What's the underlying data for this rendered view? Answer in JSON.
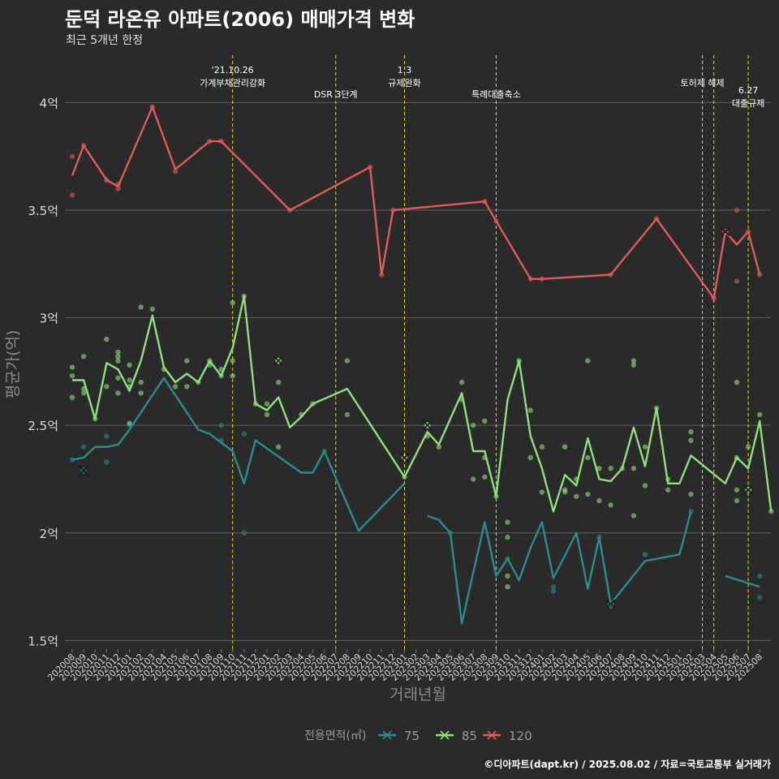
{
  "header": {
    "title": "둔덕 라온유 아파트(2006) 매매가격 변화",
    "subtitle": "최근 5개년 한정"
  },
  "caption": "©디아파트(dapt.kr) / 2025.08.02 / 자료=국토교통부 실거래가",
  "chart_data": {
    "type": "line",
    "xlabel": "거래년월",
    "ylabel": "평균가(억)",
    "x": [
      "202008",
      "202009",
      "202010",
      "202011",
      "202012",
      "202101",
      "202102",
      "202103",
      "202104",
      "202105",
      "202106",
      "202107",
      "202108",
      "202109",
      "202110",
      "202111",
      "202112",
      "202201",
      "202202",
      "202203",
      "202204",
      "202205",
      "202206",
      "202207",
      "202208",
      "202209",
      "202210",
      "202211",
      "202212",
      "202301",
      "202302",
      "202303",
      "202304",
      "202305",
      "202306",
      "202307",
      "202308",
      "202309",
      "202310",
      "202311",
      "202312",
      "202401",
      "202402",
      "202403",
      "202404",
      "202405",
      "202406",
      "202407",
      "202408",
      "202409",
      "202410",
      "202411",
      "202412",
      "202501",
      "202502",
      "202503",
      "202504",
      "202505",
      "202506",
      "202507",
      "202508"
    ],
    "y_ticks": [
      {
        "value": 1.5,
        "label": "1.5억"
      },
      {
        "value": 2.0,
        "label": "2억"
      },
      {
        "value": 2.5,
        "label": "2.5억"
      },
      {
        "value": 3.0,
        "label": "3억"
      },
      {
        "value": 3.5,
        "label": "3.5억"
      },
      {
        "value": 4.0,
        "label": "4억"
      }
    ],
    "ylim": [
      1.46,
      4.22
    ],
    "grid": true,
    "legend": {
      "title": "전용면적(㎡)",
      "position": "bottom"
    },
    "series": [
      {
        "name": "75",
        "color": "#2a8c8c",
        "segments": [
          [
            [
              0,
              2.34
            ],
            [
              1,
              2.35
            ],
            [
              2,
              2.4
            ],
            [
              3,
              2.4
            ],
            [
              4,
              2.41
            ],
            [
              5,
              2.48
            ],
            [
              8,
              2.72
            ],
            [
              11,
              2.48
            ],
            [
              12,
              2.46
            ],
            [
              14,
              2.38
            ],
            [
              15,
              2.23
            ],
            [
              16,
              2.43
            ],
            [
              20,
              2.28
            ],
            [
              21,
              2.28
            ],
            [
              22,
              2.38
            ],
            [
              25,
              2.01
            ],
            [
              29,
              2.23
            ]
          ],
          [
            [
              31,
              2.08
            ],
            [
              32,
              2.06
            ],
            [
              33,
              2.0
            ],
            [
              34,
              1.58
            ],
            [
              36,
              2.05
            ],
            [
              37,
              1.8
            ],
            [
              38,
              1.88
            ],
            [
              39,
              1.78
            ],
            [
              40,
              1.93
            ],
            [
              41,
              2.05
            ],
            [
              42,
              1.79
            ],
            [
              44,
              2.0
            ],
            [
              45,
              1.74
            ],
            [
              46,
              1.98
            ],
            [
              47,
              1.67
            ],
            [
              50,
              1.87
            ],
            [
              53,
              1.9
            ],
            [
              54,
              2.1
            ]
          ],
          [
            [
              57,
              1.8
            ],
            [
              60,
              1.75
            ]
          ]
        ],
        "points": [
          [
            0,
            2.34
          ],
          [
            1,
            2.4
          ],
          [
            3,
            2.45
          ],
          [
            3,
            2.33
          ],
          [
            5,
            2.5
          ],
          [
            13,
            2.5
          ],
          [
            13,
            2.43
          ],
          [
            15,
            2.46
          ],
          [
            15,
            2.0
          ],
          [
            22,
            2.38
          ],
          [
            33,
            2.0
          ],
          [
            38,
            1.88
          ],
          [
            42,
            1.75
          ],
          [
            42,
            1.73
          ],
          [
            46,
            1.98
          ],
          [
            47,
            1.66
          ],
          [
            50,
            1.9
          ],
          [
            54,
            2.1
          ],
          [
            60,
            1.8
          ],
          [
            60,
            1.7
          ]
        ],
        "cancelled": [
          [
            1,
            2.29
          ],
          [
            47,
            1.67
          ]
        ]
      },
      {
        "name": "85",
        "color": "#8ee07c",
        "segments": [
          [
            [
              0,
              2.71
            ],
            [
              1,
              2.71
            ],
            [
              2,
              2.53
            ],
            [
              3,
              2.79
            ],
            [
              4,
              2.76
            ],
            [
              5,
              2.66
            ],
            [
              6,
              2.8
            ],
            [
              7,
              3.01
            ],
            [
              8,
              2.77
            ],
            [
              9,
              2.7
            ],
            [
              10,
              2.74
            ],
            [
              11,
              2.7
            ],
            [
              12,
              2.8
            ],
            [
              13,
              2.73
            ],
            [
              14,
              2.86
            ],
            [
              15,
              3.1
            ],
            [
              16,
              2.6
            ],
            [
              17,
              2.57
            ],
            [
              18,
              2.63
            ],
            [
              19,
              2.49
            ],
            [
              20,
              2.54
            ],
            [
              21,
              2.6
            ],
            [
              24,
              2.67
            ],
            [
              29,
              2.26
            ],
            [
              31,
              2.47
            ],
            [
              32,
              2.41
            ],
            [
              34,
              2.65
            ],
            [
              35,
              2.38
            ],
            [
              36,
              2.38
            ],
            [
              37,
              2.17
            ],
            [
              38,
              2.62
            ],
            [
              39,
              2.8
            ],
            [
              40,
              2.45
            ],
            [
              41,
              2.3
            ],
            [
              42,
              2.1
            ],
            [
              43,
              2.27
            ],
            [
              44,
              2.22
            ],
            [
              45,
              2.44
            ],
            [
              46,
              2.25
            ],
            [
              47,
              2.24
            ],
            [
              48,
              2.3
            ],
            [
              49,
              2.49
            ],
            [
              50,
              2.31
            ],
            [
              51,
              2.58
            ],
            [
              52,
              2.23
            ],
            [
              53,
              2.23
            ],
            [
              54,
              2.36
            ],
            [
              57,
              2.23
            ],
            [
              58,
              2.35
            ],
            [
              59,
              2.3
            ],
            [
              60,
              2.52
            ],
            [
              61,
              2.1
            ]
          ]
        ],
        "points": [
          [
            0,
            2.77
          ],
          [
            0,
            2.73
          ],
          [
            0,
            2.63
          ],
          [
            1,
            2.82
          ],
          [
            1,
            2.67
          ],
          [
            1,
            2.65
          ],
          [
            2,
            2.53
          ],
          [
            3,
            2.9
          ],
          [
            3,
            2.68
          ],
          [
            4,
            2.84
          ],
          [
            4,
            2.82
          ],
          [
            4,
            2.8
          ],
          [
            4,
            2.72
          ],
          [
            4,
            2.65
          ],
          [
            5,
            2.78
          ],
          [
            5,
            2.71
          ],
          [
            5,
            2.68
          ],
          [
            5,
            2.51
          ],
          [
            6,
            3.05
          ],
          [
            6,
            2.7
          ],
          [
            6,
            2.65
          ],
          [
            7,
            3.04
          ],
          [
            8,
            2.76
          ],
          [
            9,
            2.68
          ],
          [
            10,
            2.8
          ],
          [
            10,
            2.68
          ],
          [
            11,
            2.7
          ],
          [
            12,
            2.8
          ],
          [
            12,
            2.78
          ],
          [
            13,
            2.76
          ],
          [
            13,
            2.73
          ],
          [
            14,
            3.07
          ],
          [
            14,
            2.8
          ],
          [
            14,
            2.73
          ],
          [
            15,
            3.1
          ],
          [
            16,
            2.6
          ],
          [
            17,
            2.6
          ],
          [
            17,
            2.55
          ],
          [
            18,
            2.8
          ],
          [
            18,
            2.7
          ],
          [
            18,
            2.4
          ],
          [
            20,
            2.55
          ],
          [
            21,
            2.6
          ],
          [
            24,
            2.8
          ],
          [
            24,
            2.55
          ],
          [
            29,
            2.26
          ],
          [
            31,
            2.5
          ],
          [
            31,
            2.45
          ],
          [
            32,
            2.4
          ],
          [
            34,
            2.7
          ],
          [
            34,
            2.62
          ],
          [
            35,
            2.5
          ],
          [
            35,
            2.25
          ],
          [
            36,
            2.52
          ],
          [
            36,
            2.35
          ],
          [
            36,
            2.26
          ],
          [
            37,
            2.17
          ],
          [
            38,
            2.05
          ],
          [
            38,
            1.98
          ],
          [
            38,
            1.8
          ],
          [
            38,
            1.75
          ],
          [
            39,
            2.8
          ],
          [
            40,
            2.57
          ],
          [
            40,
            2.35
          ],
          [
            41,
            2.4
          ],
          [
            41,
            2.19
          ],
          [
            43,
            2.4
          ],
          [
            43,
            2.2
          ],
          [
            43,
            2.19
          ],
          [
            44,
            2.25
          ],
          [
            44,
            2.17
          ],
          [
            45,
            2.8
          ],
          [
            45,
            2.35
          ],
          [
            45,
            2.18
          ],
          [
            46,
            2.3
          ],
          [
            46,
            2.15
          ],
          [
            47,
            2.3
          ],
          [
            47,
            2.13
          ],
          [
            48,
            2.3
          ],
          [
            49,
            2.8
          ],
          [
            49,
            2.78
          ],
          [
            49,
            2.3
          ],
          [
            49,
            2.08
          ],
          [
            50,
            2.4
          ],
          [
            50,
            2.22
          ],
          [
            51,
            2.58
          ],
          [
            52,
            2.25
          ],
          [
            52,
            2.2
          ],
          [
            54,
            2.47
          ],
          [
            54,
            2.43
          ],
          [
            54,
            2.18
          ],
          [
            58,
            2.7
          ],
          [
            58,
            2.35
          ],
          [
            58,
            2.2
          ],
          [
            58,
            2.15
          ],
          [
            59,
            2.4
          ],
          [
            60,
            2.55
          ],
          [
            61,
            2.1
          ]
        ],
        "cancelled": [
          [
            18,
            2.8
          ],
          [
            31,
            2.5
          ],
          [
            29,
            2.35
          ],
          [
            59,
            2.2
          ]
        ]
      },
      {
        "name": "120",
        "color": "#e05a5a",
        "segments": [
          [
            [
              0,
              3.66
            ],
            [
              1,
              3.8
            ],
            [
              3,
              3.64
            ],
            [
              4,
              3.61
            ],
            [
              7,
              3.98
            ],
            [
              9,
              3.69
            ],
            [
              12,
              3.82
            ],
            [
              13,
              3.82
            ],
            [
              19,
              3.5
            ],
            [
              26,
              3.7
            ],
            [
              27,
              3.2
            ],
            [
              28,
              3.5
            ],
            [
              36,
              3.54
            ],
            [
              37,
              3.45
            ],
            [
              40,
              3.18
            ],
            [
              41,
              3.18
            ],
            [
              47,
              3.2
            ],
            [
              51,
              3.46
            ],
            [
              56,
              3.09
            ],
            [
              57,
              3.4
            ],
            [
              58,
              3.34
            ],
            [
              59,
              3.4
            ],
            [
              60,
              3.2
            ]
          ]
        ],
        "points": [
          [
            0,
            3.75
          ],
          [
            0,
            3.57
          ],
          [
            1,
            3.8
          ],
          [
            3,
            3.64
          ],
          [
            4,
            3.6
          ],
          [
            4,
            3.62
          ],
          [
            7,
            3.98
          ],
          [
            9,
            3.68
          ],
          [
            12,
            3.82
          ],
          [
            13,
            3.82
          ],
          [
            19,
            3.5
          ],
          [
            26,
            3.7
          ],
          [
            27,
            3.2
          ],
          [
            28,
            3.5
          ],
          [
            36,
            3.54
          ],
          [
            37,
            3.45
          ],
          [
            40,
            3.18
          ],
          [
            41,
            3.18
          ],
          [
            47,
            3.2
          ],
          [
            51,
            3.46
          ],
          [
            56,
            3.09
          ],
          [
            58,
            3.5
          ],
          [
            58,
            3.17
          ],
          [
            59,
            3.4
          ],
          [
            60,
            3.2
          ]
        ],
        "cancelled": [
          [
            57,
            3.4
          ]
        ]
      }
    ],
    "annotations": [
      {
        "x": 14.0,
        "lines": [
          "'21.10.26",
          "가계부채관리강화"
        ],
        "row": 0
      },
      {
        "x": 23.0,
        "lines": [
          "DSR 3단계"
        ],
        "row": 2
      },
      {
        "x": 29.0,
        "lines": [
          "1.3",
          "규제완화"
        ],
        "row": 0
      },
      {
        "x": 37.0,
        "lines": [
          "특례대출축소"
        ],
        "row": 2
      },
      {
        "x": 55.0,
        "lines": [
          "토허제 해제"
        ],
        "row": 1
      },
      {
        "x": 56.0,
        "lines": [
          ""
        ],
        "row": 1
      },
      {
        "x": 59.0,
        "lines": [
          "6.27",
          "대출규제"
        ],
        "row": 3
      }
    ]
  }
}
